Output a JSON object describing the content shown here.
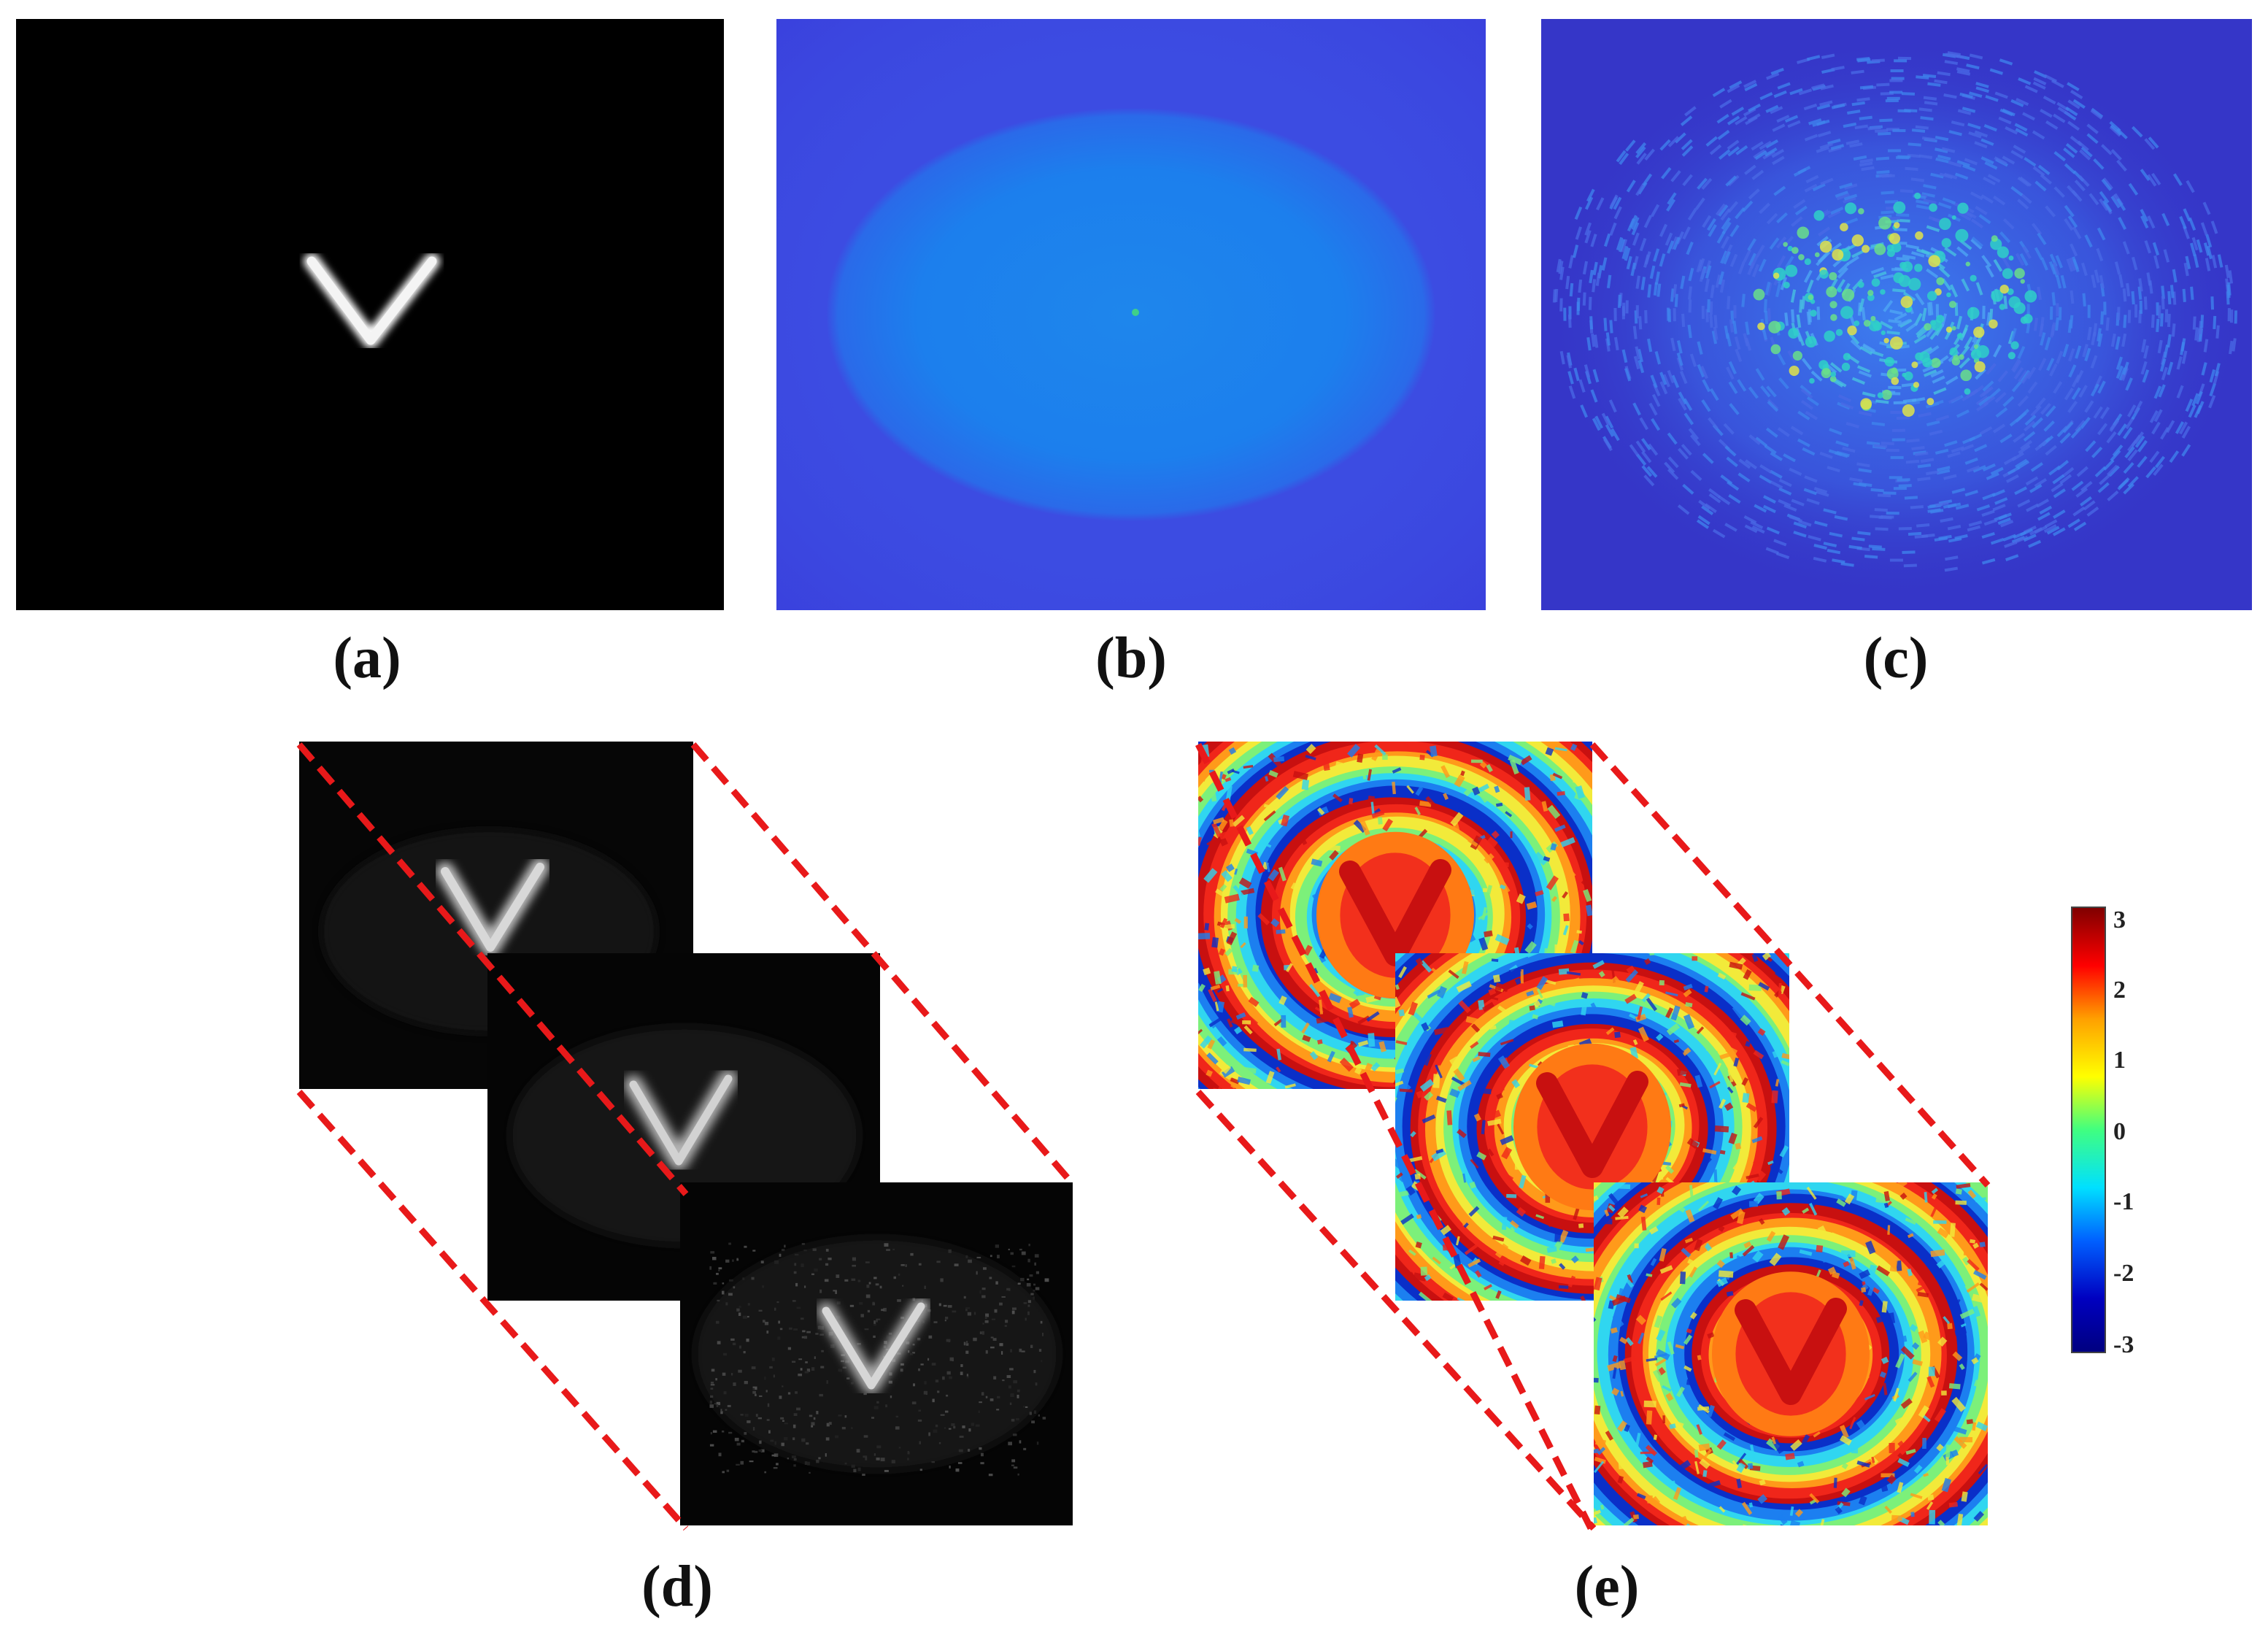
{
  "figure": {
    "panels": [
      {
        "id": "a",
        "label": "(a)",
        "content": "input object image (V)",
        "colormap": "gray"
      },
      {
        "id": "b",
        "label": "(b)",
        "content": "hologram / diffraction pattern",
        "colormap": "jet"
      },
      {
        "id": "c",
        "label": "(c)",
        "content": "spectrum amplitude",
        "colormap": "jet"
      },
      {
        "id": "d",
        "label": "(d)",
        "content": "stack of 3 reconstructed amplitude images",
        "colormap": "gray",
        "stack_count": 3
      },
      {
        "id": "e",
        "label": "(e)",
        "content": "stack of 3 reconstructed phase maps",
        "colormap": "jet",
        "stack_count": 3
      }
    ],
    "colorbar": {
      "ticks": [
        "3",
        "2",
        "1",
        "0",
        "-1",
        "-2",
        "-3"
      ],
      "min": -3,
      "max": 3,
      "colors": [
        "#800000",
        "#ff0000",
        "#ffa000",
        "#ffff00",
        "#40ff80",
        "#00e0ff",
        "#0060ff",
        "#0000c0",
        "#000080"
      ]
    },
    "guide_line_color": "#e8191a"
  }
}
